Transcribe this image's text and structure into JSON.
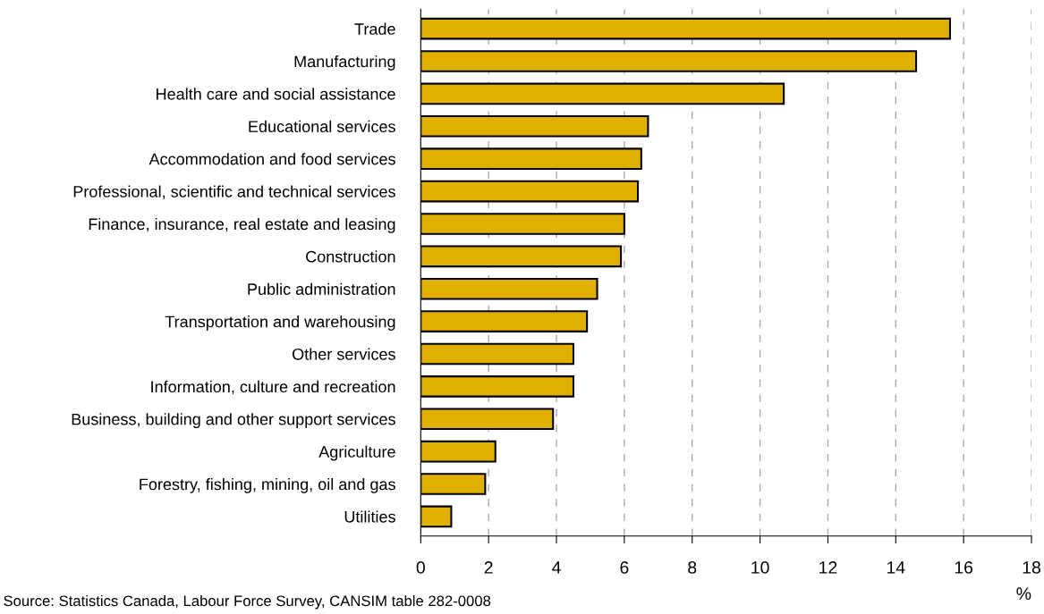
{
  "chart_data": {
    "type": "bar",
    "orientation": "horizontal",
    "categories": [
      "Trade",
      "Manufacturing",
      "Health care and social assistance",
      "Educational services",
      "Accommodation and food services",
      "Professional, scientific and technical services",
      "Finance, insurance, real estate and leasing",
      "Construction",
      "Public administration",
      "Transportation and warehousing",
      "Other services",
      "Information, culture and recreation",
      "Business, building and other support services",
      "Agriculture",
      "Forestry, fishing, mining, oil and gas",
      "Utilities"
    ],
    "values": [
      15.6,
      14.6,
      10.7,
      6.7,
      6.5,
      6.4,
      6.0,
      5.9,
      5.2,
      4.9,
      4.5,
      4.5,
      3.9,
      2.2,
      1.9,
      0.9
    ],
    "color": "#e0b000",
    "xlim": [
      0,
      18
    ],
    "xticks": [
      0,
      2,
      4,
      6,
      8,
      10,
      12,
      14,
      16,
      18
    ],
    "xlabel": "%",
    "grid": "x",
    "annotations": [
      "Source: Statistics Canada, Labour Force Survey, CANSIM table 282-0008"
    ]
  }
}
